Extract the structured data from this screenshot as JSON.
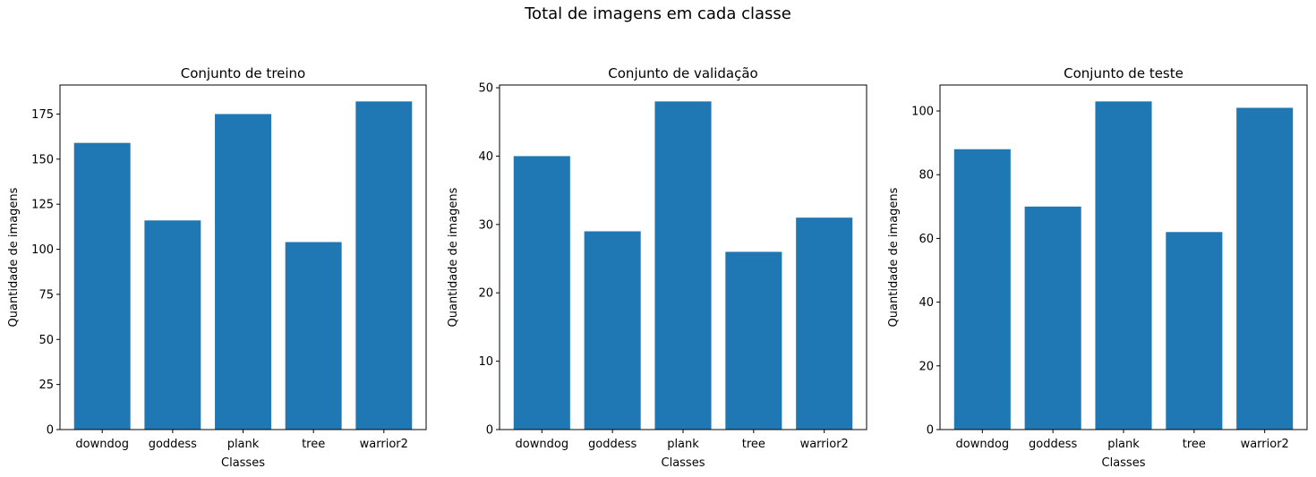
{
  "figure": {
    "suptitle": "Total de imagens em cada classe"
  },
  "chart_data": [
    {
      "type": "bar",
      "title": "Conjunto de treino",
      "xlabel": "Classes",
      "ylabel": "Quantidade de imagens",
      "categories": [
        "downdog",
        "goddess",
        "plank",
        "tree",
        "warrior2"
      ],
      "values": [
        159,
        116,
        175,
        104,
        182
      ],
      "ylim": [
        0,
        191.1
      ],
      "yticks": [
        0,
        25,
        50,
        75,
        100,
        125,
        150,
        175
      ],
      "color": "#1f77b4",
      "grid": false
    },
    {
      "type": "bar",
      "title": "Conjunto de validação",
      "xlabel": "Classes",
      "ylabel": "Quantidade de imagens",
      "categories": [
        "downdog",
        "goddess",
        "plank",
        "tree",
        "warrior2"
      ],
      "values": [
        40,
        29,
        48,
        26,
        31
      ],
      "ylim": [
        0,
        50.4
      ],
      "yticks": [
        0,
        10,
        20,
        30,
        40,
        50
      ],
      "color": "#1f77b4",
      "grid": false
    },
    {
      "type": "bar",
      "title": "Conjunto de teste",
      "xlabel": "Classes",
      "ylabel": "Quantidade de imagens",
      "categories": [
        "downdog",
        "goddess",
        "plank",
        "tree",
        "warrior2"
      ],
      "values": [
        88,
        70,
        103,
        62,
        101
      ],
      "ylim": [
        0,
        108.15
      ],
      "yticks": [
        0,
        20,
        40,
        60,
        80,
        100
      ],
      "color": "#1f77b4",
      "grid": false
    }
  ]
}
